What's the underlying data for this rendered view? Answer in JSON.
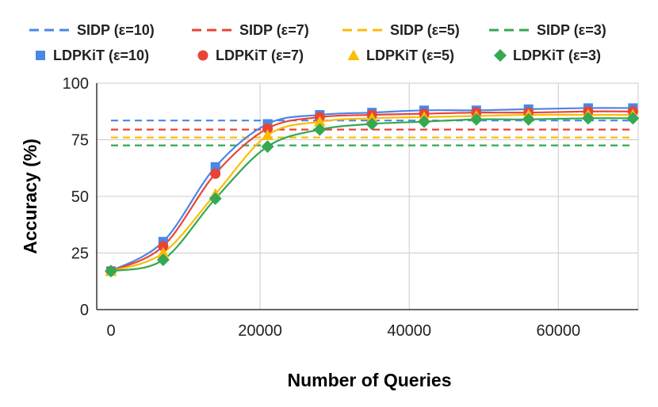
{
  "chart_data": {
    "type": "line",
    "title": "",
    "xlabel": "Number of Queries",
    "ylabel": "Accuracy (%)",
    "xlim": [
      0,
      70000
    ],
    "ylim": [
      0,
      100
    ],
    "x_ticks": [
      0,
      20000,
      40000,
      60000
    ],
    "y_ticks": [
      0,
      25,
      50,
      75,
      100
    ],
    "grid": true,
    "legend_position": "top",
    "colors": {
      "blue": "#4a86e8",
      "red": "#ea4335",
      "yellow": "#fbbc04",
      "green": "#34a853",
      "grid": "#cccccc",
      "axis": "#333333"
    },
    "baselines": [
      {
        "name": "SIDP (ε=10)",
        "value": 83.5,
        "color": "#4a86e8"
      },
      {
        "name": "SIDP (ε=7)",
        "value": 79.5,
        "color": "#ea4335"
      },
      {
        "name": "SIDP (ε=5)",
        "value": 76,
        "color": "#fbbc04"
      },
      {
        "name": "SIDP (ε=3)",
        "value": 72.5,
        "color": "#34a853"
      }
    ],
    "x": [
      0,
      7000,
      14000,
      21000,
      28000,
      35000,
      42000,
      49000,
      56000,
      64000,
      70000
    ],
    "series": [
      {
        "name": "LDPKiT (ε=10)",
        "marker": "square",
        "color": "#4a86e8",
        "values": [
          17,
          30,
          63,
          82,
          86,
          87,
          88,
          88,
          88.5,
          89,
          89
        ]
      },
      {
        "name": "LDPKiT (ε=7)",
        "marker": "circle",
        "color": "#ea4335",
        "values": [
          17,
          28,
          60,
          80,
          85,
          86,
          86.5,
          87,
          87,
          87.5,
          87.5
        ]
      },
      {
        "name": "LDPKiT (ε=5)",
        "marker": "triangle",
        "color": "#fbbc04",
        "values": [
          17,
          25,
          51,
          77,
          83,
          84.5,
          85,
          85.5,
          86,
          86,
          86
        ]
      },
      {
        "name": "LDPKiT (ε=3)",
        "marker": "diamond",
        "color": "#34a853",
        "values": [
          17,
          22,
          49,
          72,
          79.5,
          82,
          83,
          84,
          84,
          84.5,
          84.5
        ]
      }
    ]
  }
}
